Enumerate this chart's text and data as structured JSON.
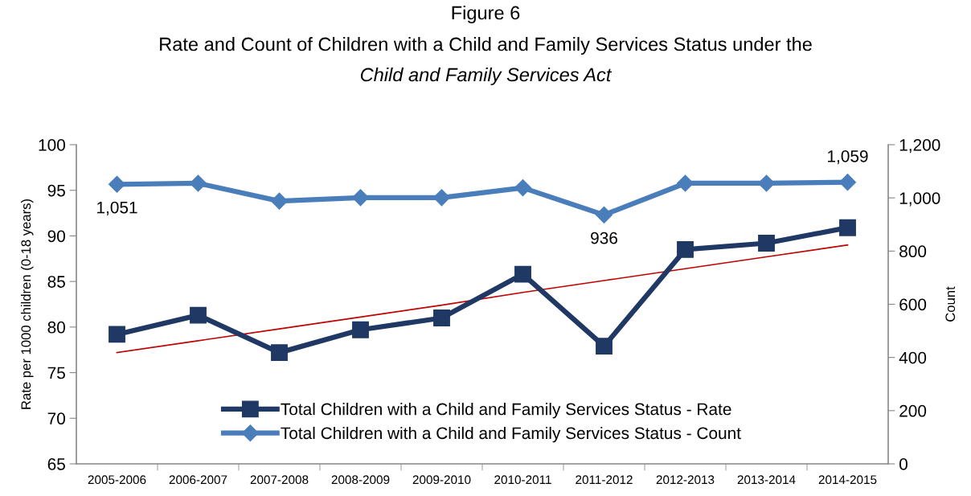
{
  "chart_data": {
    "type": "line",
    "title": "Figure 6",
    "subtitle": "Rate and Count of Children with a Child and Family Services Status under the",
    "annotations": [
      "Child and Family Services Act"
    ],
    "ylabel": "Rate per 1000 children (0-18 years)",
    "y2label": "Count",
    "categories": [
      "2005-2006",
      "2006-2007",
      "2007-2008",
      "2008-2009",
      "2009-2010",
      "2010-2011",
      "2011-2012",
      "2012-2013",
      "2013-2014",
      "2014-2015"
    ],
    "series": [
      {
        "name": "Total Children with a Child and Family Services Status - Rate",
        "color": "#1f3864",
        "marker": "square",
        "values": [
          79.2,
          81.3,
          77.2,
          79.7,
          81.0,
          85.8,
          77.9,
          88.5,
          89.2,
          90.9
        ]
      },
      {
        "name": "Total Children with a Child and Family Services Status - Count",
        "color": "#4a7ebb",
        "marker": "diamond",
        "axis": "y2",
        "values": [
          1051,
          1055,
          988,
          1001,
          1001,
          1038,
          936,
          1055,
          1055,
          1059
        ],
        "value_labels": [
          "1,051",
          null,
          null,
          null,
          null,
          null,
          "936",
          null,
          null,
          "1,059"
        ]
      },
      {
        "color": "#c00000",
        "marker": "none",
        "values": [
          77.2,
          78.5,
          79.8,
          81.1,
          82.4,
          83.8,
          85.1,
          86.4,
          87.7,
          89.0
        ]
      }
    ],
    "ylim": [
      65,
      100
    ],
    "yticks": [
      65,
      70,
      75,
      80,
      85,
      90,
      95,
      100
    ],
    "y2lim": [
      0,
      1200
    ],
    "y2ticks": [
      0,
      200,
      400,
      600,
      800,
      {
        "value": 1000,
        "label": "1,000"
      },
      {
        "value": 1200,
        "label": "1,200"
      }
    ],
    "grid": false,
    "legend": "bottom"
  }
}
